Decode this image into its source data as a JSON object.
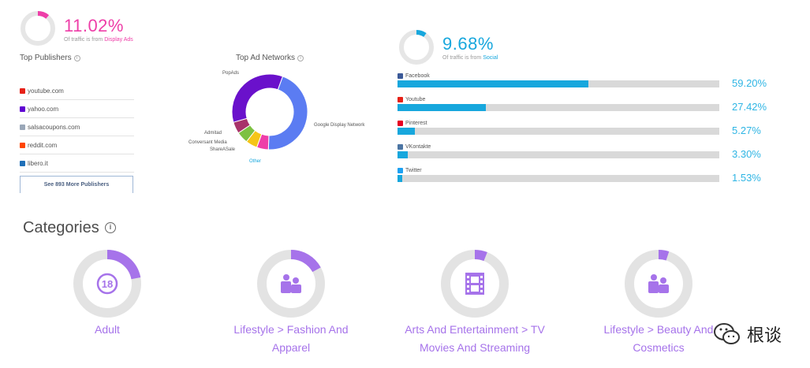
{
  "display_ads": {
    "percent": "11.02%",
    "value_fraction": 0.1102,
    "note_prefix": "Of traffic is from ",
    "note_link": "Display Ads",
    "color": "#ee3ea8"
  },
  "top_publishers": {
    "title": "Top Publishers",
    "items": [
      {
        "name": "youtube.com",
        "icon": "youtube-icon",
        "color": "#e62117"
      },
      {
        "name": "yahoo.com",
        "icon": "yahoo-icon",
        "color": "#6001d2"
      },
      {
        "name": "salsacoupons.com",
        "icon": "globe-icon",
        "color": "#9aa7b8"
      },
      {
        "name": "reddit.com",
        "icon": "reddit-icon",
        "color": "#ff4500"
      },
      {
        "name": "libero.it",
        "icon": "libero-icon",
        "color": "#1f6fb8"
      }
    ],
    "more_button": "See 893 More Publishers"
  },
  "top_ad_networks": {
    "title": "Top Ad Networks",
    "chart_data": {
      "type": "pie",
      "labels": [
        "Google Display Network",
        "Other",
        "ShareASale",
        "Conversant Media",
        "Admitad",
        "PopAds"
      ],
      "values": [
        45,
        5,
        5,
        5,
        5,
        35
      ],
      "colors": [
        "#5b7cf2",
        "#ee3ea8",
        "#f5c518",
        "#7dc142",
        "#a8336a",
        "#6a11cb"
      ]
    }
  },
  "social": {
    "percent": "9.68%",
    "value_fraction": 0.0968,
    "note_prefix": "Of traffic is from ",
    "note_link": "Social",
    "color": "#17a7dd",
    "items": [
      {
        "name": "Facebook",
        "percent_label": "59.20%",
        "value": 59.2,
        "icon": "facebook-icon",
        "color": "#3b5998"
      },
      {
        "name": "Youtube",
        "percent_label": "27.42%",
        "value": 27.42,
        "icon": "youtube-icon",
        "color": "#e62117"
      },
      {
        "name": "Pinterest",
        "percent_label": "5.27%",
        "value": 5.27,
        "icon": "pinterest-icon",
        "color": "#e60023"
      },
      {
        "name": "VKontakte",
        "percent_label": "3.30%",
        "value": 3.3,
        "icon": "vk-icon",
        "color": "#4c75a3"
      },
      {
        "name": "Twitter",
        "percent_label": "1.53%",
        "value": 1.53,
        "icon": "twitter-icon",
        "color": "#1da1f2"
      }
    ]
  },
  "categories": {
    "title": "Categories",
    "accent": "#a673ea",
    "items": [
      {
        "line1": "Adult",
        "line2": "",
        "fraction": 0.22,
        "icon": "adult-18-icon"
      },
      {
        "line1": "Lifestyle > Fashion And",
        "line2": "Apparel",
        "fraction": 0.17,
        "icon": "lifestyle-people-icon"
      },
      {
        "line1": "Arts And Entertainment > TV",
        "line2": "Movies And Streaming",
        "fraction": 0.06,
        "icon": "film-strip-icon"
      },
      {
        "line1": "Lifestyle > Beauty And",
        "line2": "Cosmetics",
        "fraction": 0.05,
        "icon": "lifestyle-people-icon"
      }
    ]
  },
  "watermark": {
    "text": "根谈",
    "icon": "wechat-icon"
  }
}
